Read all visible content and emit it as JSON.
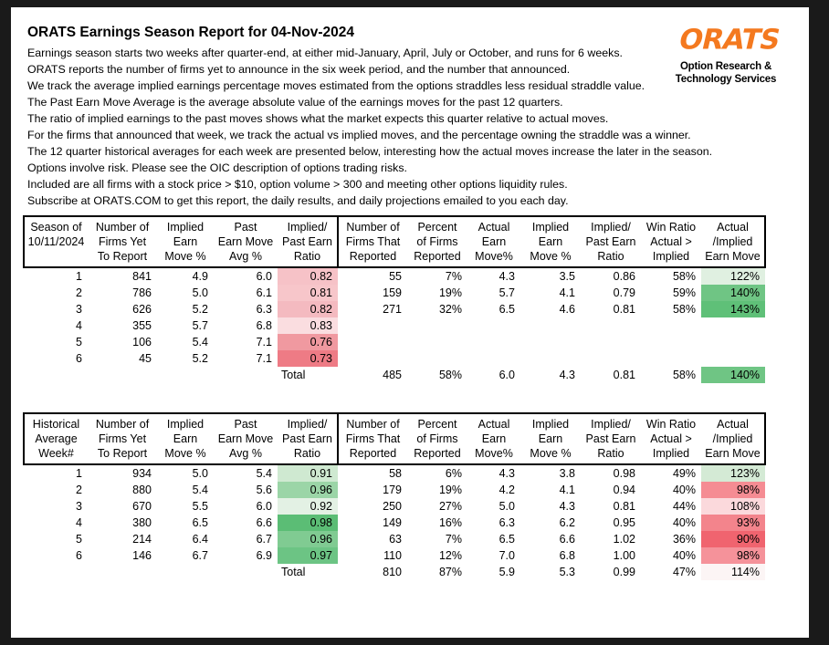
{
  "title": "ORATS Earnings Season Report for 04-Nov-2024",
  "intro": [
    "Earnings season starts two weeks after quarter-end, at either mid-January, April, July or October, and runs for 6 weeks.",
    "ORATS reports the number of firms yet to announce in the six week period, and the number that announced.",
    "We track the average implied earnings percentage moves estimated from the options straddles less residual straddle value.",
    "The Past Earn Move Average is the average absolute value of the earnings moves for the past 12 quarters.",
    "The ratio of implied earnings to the past moves shows what the market expects this quarter relative to actual moves.",
    "For the firms that announced that week, we track the actual vs implied moves, and the percentage owning the straddle was a winner.",
    "The 12 quarter historical averages for each week are presented below, interesting how the actual moves increase the later in the season.",
    "Options involve risk. Please see the OIC description of options trading risks.",
    "Included are all firms with a stock price > $10, option volume > 300 and meeting other options liquidity rules.",
    "Subscribe at ORATS.COM to get this report, the daily results, and daily projections emailed to you each day."
  ],
  "logo": {
    "text": "ORATS",
    "color": "#f4791f",
    "tagline": [
      "Option Research &",
      "Technology Services"
    ]
  },
  "tables": [
    {
      "name": "season",
      "columns": [
        [
          "Season of",
          "10/11/2024",
          ""
        ],
        [
          "Number of",
          "Firms Yet",
          "To Report"
        ],
        [
          "Implied",
          "Earn",
          "Move %"
        ],
        [
          "Past",
          "Earn Move",
          "Avg %"
        ],
        [
          "Implied/",
          "Past Earn",
          "Ratio"
        ],
        [
          "Number of",
          "Firms That",
          "Reported"
        ],
        [
          "Percent",
          "of Firms",
          "Reported"
        ],
        [
          "Actual",
          "Earn",
          "Move%"
        ],
        [
          "Implied",
          "Earn",
          "Move %"
        ],
        [
          "Implied/",
          "Past Earn",
          "Ratio"
        ],
        [
          "Win Ratio",
          "Actual >",
          "Implied"
        ],
        [
          "Actual",
          "/Implied",
          "Earn Move"
        ]
      ],
      "rows": [
        {
          "cells": [
            "1",
            "841",
            "4.9",
            "6.0",
            "0.82",
            "55",
            "7%",
            "4.3",
            "3.5",
            "0.86",
            "58%",
            "122%"
          ],
          "fills": {
            "4": "#f6c2c7",
            "11": "#e0f0e1"
          }
        },
        {
          "cells": [
            "2",
            "786",
            "5.0",
            "6.1",
            "0.81",
            "159",
            "19%",
            "5.7",
            "4.1",
            "0.79",
            "59%",
            "140%"
          ],
          "fills": {
            "4": "#f7c6ca",
            "11": "#6fc584"
          }
        },
        {
          "cells": [
            "3",
            "626",
            "5.2",
            "6.3",
            "0.82",
            "271",
            "32%",
            "6.5",
            "4.6",
            "0.81",
            "58%",
            "143%"
          ],
          "fills": {
            "4": "#f4bac0",
            "11": "#5fc078"
          }
        },
        {
          "cells": [
            "4",
            "355",
            "5.7",
            "6.8",
            "0.83",
            "",
            "",
            "",
            "",
            "",
            "",
            ""
          ],
          "fills": {
            "4": "#fadde0"
          }
        },
        {
          "cells": [
            "5",
            "106",
            "5.4",
            "7.1",
            "0.76",
            "",
            "",
            "",
            "",
            "",
            "",
            ""
          ],
          "fills": {
            "4": "#f099a0"
          }
        },
        {
          "cells": [
            "6",
            "45",
            "5.2",
            "7.1",
            "0.73",
            "",
            "",
            "",
            "",
            "",
            "",
            ""
          ],
          "fills": {
            "4": "#ee7b85"
          }
        }
      ],
      "total_row": {
        "cells": [
          "",
          "",
          "",
          "",
          "Total",
          "485",
          "58%",
          "6.0",
          "4.3",
          "0.81",
          "58%",
          "140%"
        ],
        "fills": {
          "11": "#6fc584"
        }
      }
    },
    {
      "name": "historical",
      "columns": [
        [
          "Historical",
          "Average",
          "Week#"
        ],
        [
          "Number of",
          "Firms Yet",
          "To Report"
        ],
        [
          "Implied",
          "Earn",
          "Move %"
        ],
        [
          "Past",
          "Earn Move",
          "Avg %"
        ],
        [
          "Implied/",
          "Past Earn",
          "Ratio"
        ],
        [
          "Number of",
          "Firms That",
          "Reported"
        ],
        [
          "Percent",
          "of Firms",
          "Reported"
        ],
        [
          "Actual",
          "Earn",
          "Move%"
        ],
        [
          "Implied",
          "Earn",
          "Move %"
        ],
        [
          "Implied/",
          "Past Earn",
          "Ratio"
        ],
        [
          "Win Ratio",
          "Actual >",
          "Implied"
        ],
        [
          "Actual",
          "/Implied",
          "Earn Move"
        ]
      ],
      "rows": [
        {
          "cells": [
            "1",
            "934",
            "5.0",
            "5.4",
            "0.91",
            "58",
            "6%",
            "4.3",
            "3.8",
            "0.98",
            "49%",
            "123%"
          ],
          "fills": {
            "4": "#cfe9d1",
            "11": "#d4ead5"
          }
        },
        {
          "cells": [
            "2",
            "880",
            "5.4",
            "5.6",
            "0.96",
            "179",
            "19%",
            "4.2",
            "4.1",
            "0.94",
            "40%",
            "98%"
          ],
          "fills": {
            "4": "#9bd5a7",
            "11": "#f58c93"
          }
        },
        {
          "cells": [
            "3",
            "670",
            "5.5",
            "6.0",
            "0.92",
            "250",
            "27%",
            "5.0",
            "4.3",
            "0.81",
            "44%",
            "108%"
          ],
          "fills": {
            "4": "#e3f1e4",
            "11": "#fbd9dc"
          }
        },
        {
          "cells": [
            "4",
            "380",
            "6.5",
            "6.6",
            "0.98",
            "149",
            "16%",
            "6.3",
            "6.2",
            "0.95",
            "40%",
            "93%"
          ],
          "fills": {
            "4": "#5bbd75",
            "11": "#f3848c"
          }
        },
        {
          "cells": [
            "5",
            "214",
            "6.4",
            "6.7",
            "0.96",
            "63",
            "7%",
            "6.5",
            "6.6",
            "1.02",
            "36%",
            "90%"
          ],
          "fills": {
            "4": "#80cb92",
            "11": "#f0646f"
          }
        },
        {
          "cells": [
            "6",
            "146",
            "6.7",
            "6.9",
            "0.97",
            "110",
            "12%",
            "7.0",
            "6.8",
            "1.00",
            "40%",
            "98%"
          ],
          "fills": {
            "4": "#6cc484",
            "11": "#f5929a"
          }
        }
      ],
      "total_row": {
        "cells": [
          "",
          "",
          "",
          "",
          "Total",
          "810",
          "87%",
          "5.9",
          "5.3",
          "0.99",
          "47%",
          "114%"
        ],
        "fills": {
          "11": "#fcf5f5"
        }
      }
    }
  ]
}
